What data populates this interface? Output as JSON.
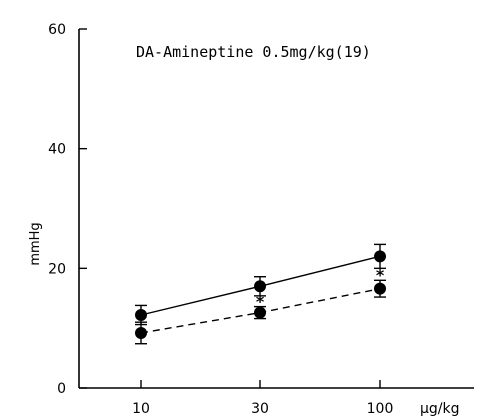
{
  "chart_data": {
    "type": "line",
    "title": "DA-Amineptine 0.5mg/kg(19)",
    "xlabel": "μg/kg",
    "ylabel": "mmHg",
    "categories": [
      "10",
      "30",
      "100"
    ],
    "ylim": [
      0,
      60
    ],
    "yticks": [
      "0",
      "20",
      "40",
      "60"
    ],
    "series": [
      {
        "style": "solid",
        "values": [
          12.2,
          17.0,
          22.0
        ],
        "error": [
          1.6,
          1.6,
          2.0
        ]
      },
      {
        "style": "dashed",
        "values": [
          9.2,
          12.6,
          16.6
        ],
        "error": [
          1.8,
          1.0,
          1.4
        ]
      }
    ],
    "annotations": [
      {
        "category": "30",
        "text": "*"
      },
      {
        "category": "100",
        "text": "*"
      }
    ]
  }
}
